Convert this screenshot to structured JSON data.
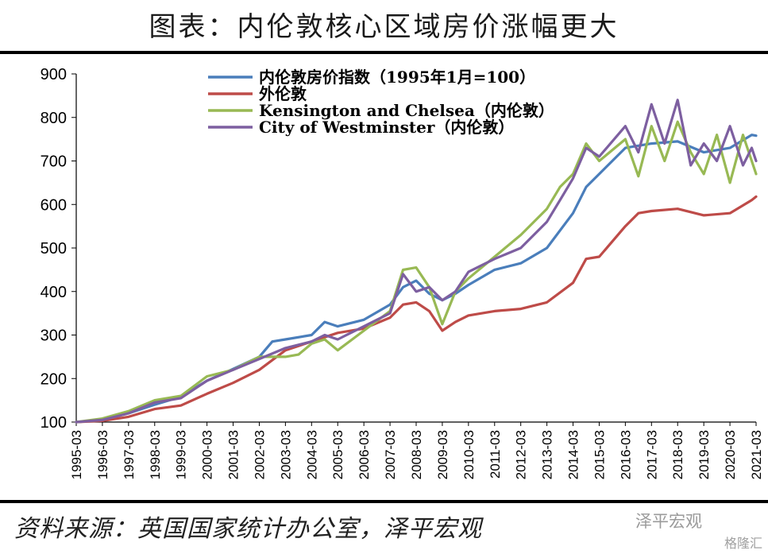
{
  "title": "图表：内伦敦核心区域房价涨幅更大",
  "source": "资料来源：英国国家统计办公室，泽平宏观",
  "watermark": {
    "text": "泽平宏观",
    "sub": "格隆汇"
  },
  "chart_data": {
    "type": "line",
    "title": "",
    "xlabel": "",
    "ylabel": "",
    "ylim": [
      100,
      900
    ],
    "yticks": [
      100,
      200,
      300,
      400,
      500,
      600,
      700,
      800,
      900
    ],
    "x_start": "1995-03",
    "xticks": [
      "1995-03",
      "1996-03",
      "1997-03",
      "1998-03",
      "1999-03",
      "2000-03",
      "2001-03",
      "2002-03",
      "2003-03",
      "2004-03",
      "2005-03",
      "2006-03",
      "2007-03",
      "2008-03",
      "2009-03",
      "2010-03",
      "2011-03",
      "2012-03",
      "2013-03",
      "2014-03",
      "2015-03",
      "2016-03",
      "2017-03",
      "2018-03",
      "2019-03",
      "2020-03",
      "2021-03"
    ],
    "grid": false,
    "legend_position": "top-left",
    "series": [
      {
        "name": "内伦敦房价指数（1995年1月=100）",
        "color": "#4a7ebb",
        "x": [
          "1995-03",
          "1996-03",
          "1997-03",
          "1998-03",
          "1999-03",
          "2000-03",
          "2001-03",
          "2002-03",
          "2002-09",
          "2003-03",
          "2004-03",
          "2004-09",
          "2005-03",
          "2006-03",
          "2007-03",
          "2007-09",
          "2008-03",
          "2008-09",
          "2009-03",
          "2009-09",
          "2010-03",
          "2011-03",
          "2012-03",
          "2013-03",
          "2014-03",
          "2014-09",
          "2015-03",
          "2016-03",
          "2017-03",
          "2018-03",
          "2019-03",
          "2020-03",
          "2021-01",
          "2021-03"
        ],
        "values": [
          100,
          105,
          120,
          140,
          158,
          195,
          222,
          250,
          285,
          290,
          300,
          330,
          320,
          335,
          370,
          410,
          425,
          395,
          380,
          395,
          415,
          450,
          465,
          500,
          580,
          640,
          670,
          730,
          740,
          745,
          720,
          730,
          760,
          758
        ]
      },
      {
        "name": "外伦敦",
        "color": "#be4b48",
        "x": [
          "1995-03",
          "1996-03",
          "1997-03",
          "1998-03",
          "1999-03",
          "2000-03",
          "2001-03",
          "2002-03",
          "2003-03",
          "2004-03",
          "2005-03",
          "2006-03",
          "2007-03",
          "2007-09",
          "2008-03",
          "2008-09",
          "2009-03",
          "2009-09",
          "2010-03",
          "2011-03",
          "2012-03",
          "2013-03",
          "2014-03",
          "2014-09",
          "2015-03",
          "2016-03",
          "2016-09",
          "2017-03",
          "2018-03",
          "2019-03",
          "2020-03",
          "2021-01",
          "2021-03"
        ],
        "values": [
          100,
          103,
          112,
          130,
          138,
          165,
          190,
          220,
          265,
          285,
          305,
          315,
          340,
          370,
          375,
          355,
          310,
          330,
          345,
          355,
          360,
          375,
          420,
          475,
          480,
          550,
          580,
          585,
          590,
          575,
          580,
          610,
          618
        ]
      },
      {
        "name": "Kensington and Chelsea（内伦敦）",
        "color": "#98b954",
        "x": [
          "1995-03",
          "1996-03",
          "1997-03",
          "1998-03",
          "1999-03",
          "2000-03",
          "2001-03",
          "2002-03",
          "2003-03",
          "2003-09",
          "2004-03",
          "2004-09",
          "2005-03",
          "2006-03",
          "2007-03",
          "2007-09",
          "2008-03",
          "2008-09",
          "2009-03",
          "2009-09",
          "2010-03",
          "2011-03",
          "2012-03",
          "2013-03",
          "2013-09",
          "2014-03",
          "2014-09",
          "2015-03",
          "2016-03",
          "2016-09",
          "2017-03",
          "2017-09",
          "2018-03",
          "2018-09",
          "2019-03",
          "2019-09",
          "2020-03",
          "2020-09",
          "2021-01",
          "2021-03"
        ],
        "values": [
          100,
          108,
          125,
          150,
          160,
          205,
          220,
          250,
          250,
          255,
          280,
          290,
          265,
          310,
          355,
          450,
          455,
          410,
          325,
          400,
          430,
          480,
          530,
          590,
          640,
          670,
          740,
          700,
          750,
          665,
          780,
          700,
          790,
          720,
          670,
          760,
          650,
          760,
          700,
          670
        ]
      },
      {
        "name": "City of Westminster（内伦敦）",
        "color": "#7d5fa0",
        "x": [
          "1995-03",
          "1996-03",
          "1997-03",
          "1998-03",
          "1999-03",
          "2000-03",
          "2001-03",
          "2002-03",
          "2003-03",
          "2004-03",
          "2004-09",
          "2005-03",
          "2006-03",
          "2007-03",
          "2007-09",
          "2008-03",
          "2008-09",
          "2009-03",
          "2009-09",
          "2010-03",
          "2011-03",
          "2012-03",
          "2013-03",
          "2013-09",
          "2014-03",
          "2014-09",
          "2015-03",
          "2016-03",
          "2016-09",
          "2017-03",
          "2017-09",
          "2018-03",
          "2018-09",
          "2019-03",
          "2019-09",
          "2020-03",
          "2020-09",
          "2021-01",
          "2021-03"
        ],
        "values": [
          100,
          105,
          120,
          145,
          155,
          195,
          220,
          245,
          270,
          285,
          300,
          290,
          320,
          350,
          440,
          400,
          410,
          380,
          400,
          445,
          475,
          500,
          560,
          610,
          660,
          730,
          710,
          780,
          720,
          830,
          740,
          840,
          690,
          740,
          700,
          780,
          690,
          730,
          700
        ]
      }
    ]
  }
}
